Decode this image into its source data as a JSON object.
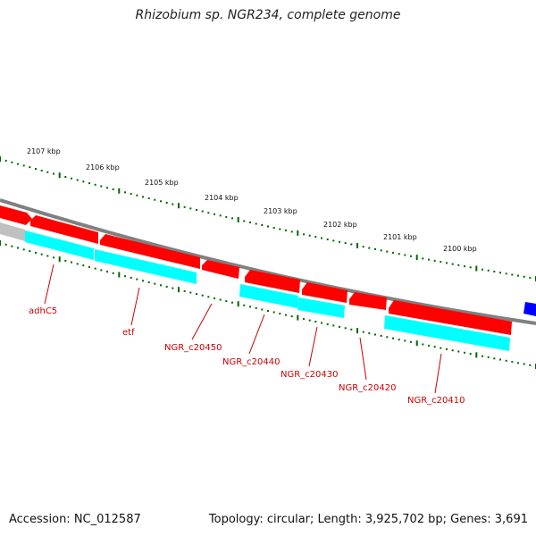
{
  "title": "Rhizobium sp. NGR234, complete genome",
  "footer": {
    "accession": "Accession: NC_012587",
    "summary": "Topology: circular; Length: 3,925,702 bp; Genes: 3,691"
  },
  "colors": {
    "backbone": "#808080",
    "forward_strand": "#ff0000",
    "reverse_strand": "#00ffff",
    "ticks": "#006600",
    "gene_labels": "#cc0000",
    "partial_gene_left": "#c0c0c0",
    "partial_gene_right": "#0000ff"
  },
  "ruler": {
    "labels": [
      "2107 kbp",
      "2106 kbp",
      "2105 kbp",
      "2104 kbp",
      "2103 kbp",
      "2102 kbp",
      "2101 kbp",
      "2100 kbp"
    ]
  },
  "genes": [
    {
      "label": "adhC5",
      "strand": "reverse"
    },
    {
      "label": "etf",
      "strand": "reverse"
    },
    {
      "label": "NGR_c20450",
      "strand": "forward"
    },
    {
      "label": "NGR_c20440",
      "strand": "reverse"
    },
    {
      "label": "NGR_c20430",
      "strand": "reverse"
    },
    {
      "label": "NGR_c20420",
      "strand": "forward"
    },
    {
      "label": "NGR_c20410",
      "strand": "reverse"
    }
  ]
}
